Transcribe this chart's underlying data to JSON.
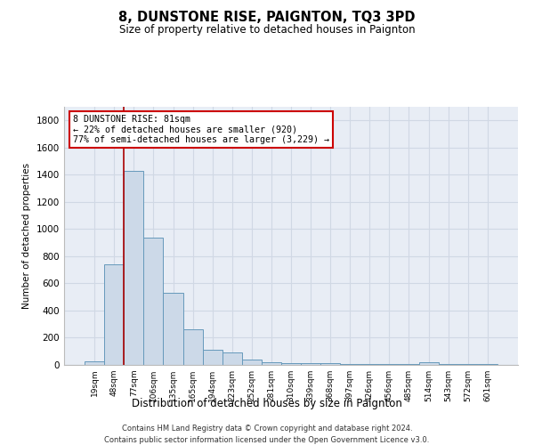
{
  "title": "8, DUNSTONE RISE, PAIGNTON, TQ3 3PD",
  "subtitle": "Size of property relative to detached houses in Paignton",
  "xlabel": "Distribution of detached houses by size in Paignton",
  "ylabel": "Number of detached properties",
  "bar_color": "#ccd9e8",
  "bar_edge_color": "#6699bb",
  "vline_color": "#aa0000",
  "vline_x": 1.5,
  "categories": [
    "19sqm",
    "48sqm",
    "77sqm",
    "106sqm",
    "135sqm",
    "165sqm",
    "194sqm",
    "223sqm",
    "252sqm",
    "281sqm",
    "310sqm",
    "339sqm",
    "368sqm",
    "397sqm",
    "426sqm",
    "456sqm",
    "485sqm",
    "514sqm",
    "543sqm",
    "572sqm",
    "601sqm"
  ],
  "values": [
    25,
    740,
    1430,
    935,
    530,
    265,
    110,
    95,
    40,
    20,
    15,
    10,
    10,
    5,
    5,
    5,
    5,
    20,
    5,
    5,
    5
  ],
  "annotation_text": "8 DUNSTONE RISE: 81sqm\n← 22% of detached houses are smaller (920)\n77% of semi-detached houses are larger (3,229) →",
  "ylim": [
    0,
    1900
  ],
  "yticks": [
    0,
    200,
    400,
    600,
    800,
    1000,
    1200,
    1400,
    1600,
    1800
  ],
  "bg_color": "#e8edf5",
  "grid_color": "#d0d8e4",
  "footer_line1": "Contains HM Land Registry data © Crown copyright and database right 2024.",
  "footer_line2": "Contains public sector information licensed under the Open Government Licence v3.0."
}
